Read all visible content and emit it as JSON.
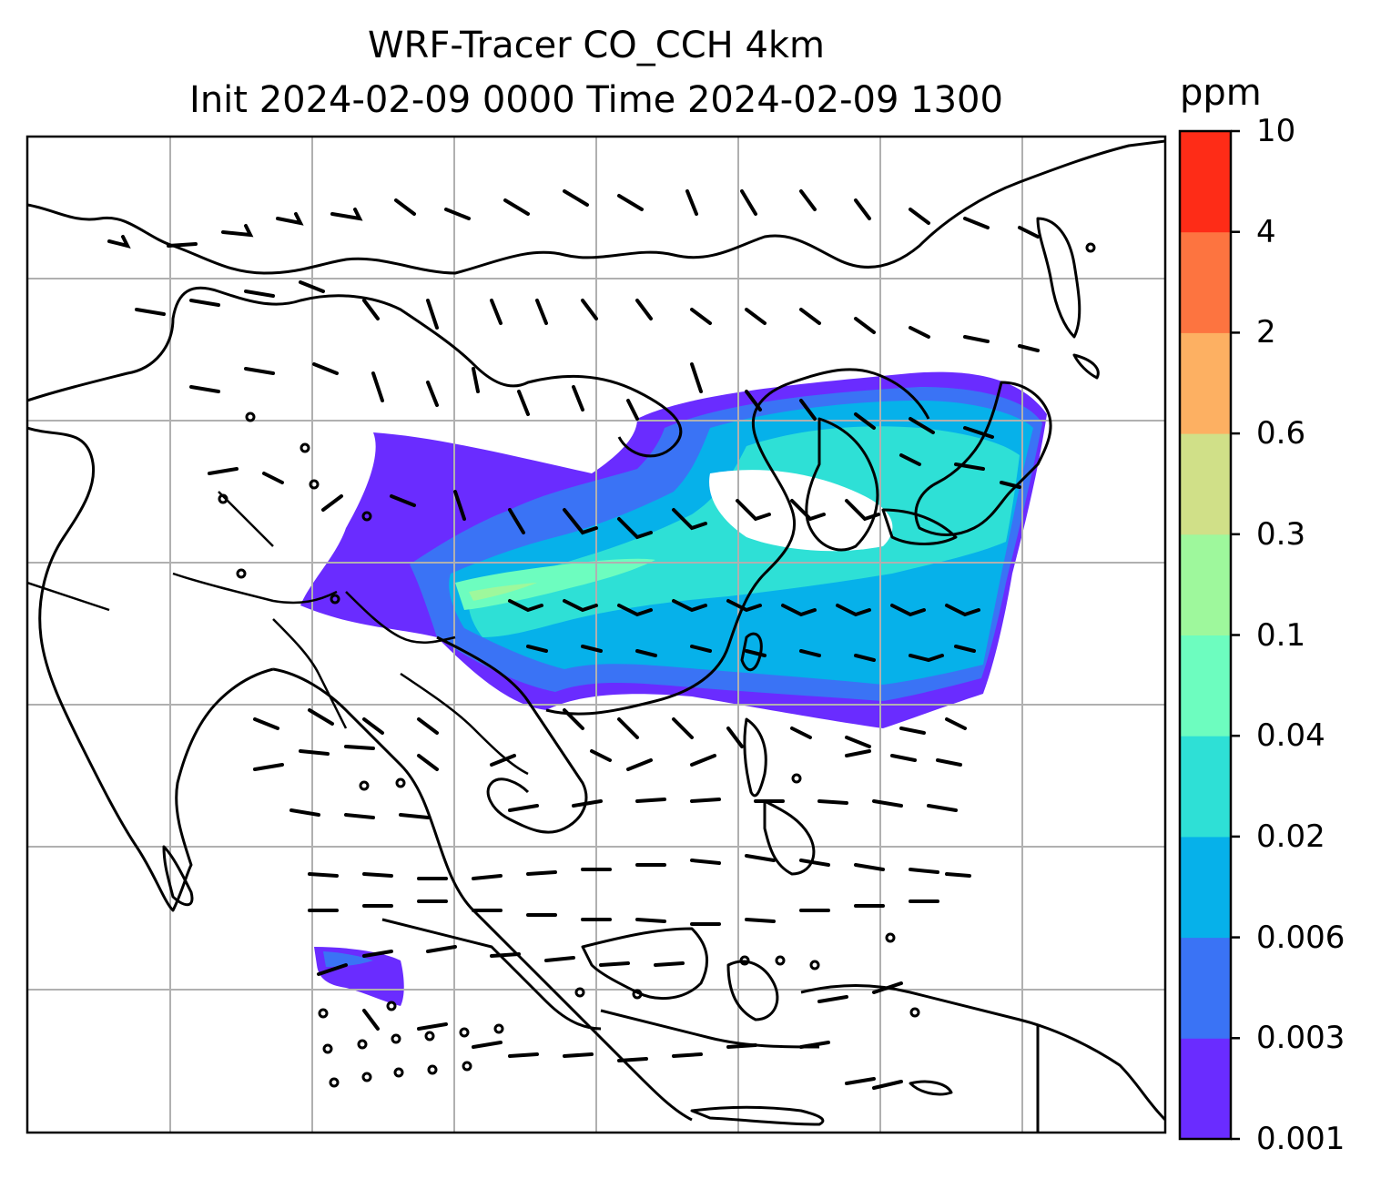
{
  "title_line1": "WRF-Tracer CO_CCH 4km",
  "title_line2": "Init 2024-02-09 0000 Time 2024-02-09 1300",
  "colorbar": {
    "unit": "ppm",
    "tick_labels": [
      "0.001",
      "0.003",
      "0.006",
      "0.02",
      "0.04",
      "0.1",
      "0.3",
      "0.6",
      "2",
      "4",
      "10"
    ],
    "colors": [
      "#6a2cff",
      "#3a73f5",
      "#06b1ea",
      "#2ee0d6",
      "#6dfdbf",
      "#9ef89c",
      "#d0e088",
      "#fdb062",
      "#fd7440",
      "#fe2c17"
    ]
  },
  "map": {
    "features": [
      "coastlines",
      "country-borders",
      "lat-lon-gridlines",
      "wind-barbs",
      "co-tracer-fill"
    ]
  }
}
